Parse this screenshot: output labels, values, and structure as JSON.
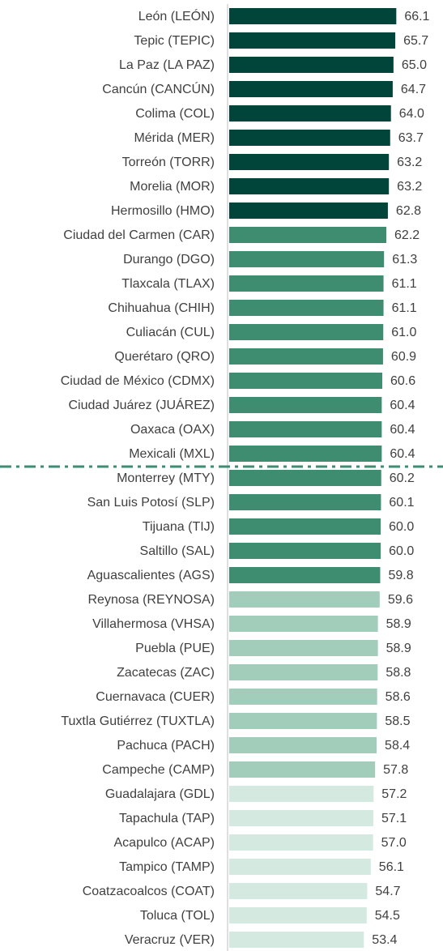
{
  "chart_data": {
    "type": "hbar",
    "categories": [
      "León (LEÓN)",
      "Tepic (TEPIC)",
      "La Paz (LA PAZ)",
      "Cancún (CANCÚN)",
      "Colima (COL)",
      "Mérida (MER)",
      "Torreón (TORR)",
      "Morelia (MOR)",
      "Hermosillo (HMO)",
      "Ciudad del Carmen (CAR)",
      "Durango (DGO)",
      "Tlaxcala (TLAX)",
      "Chihuahua (CHIH)",
      "Culiacán (CUL)",
      "Querétaro (QRO)",
      "Ciudad de México (CDMX)",
      "Ciudad Juárez (JUÁREZ)",
      "Oaxaca (OAX)",
      "Mexicali (MXL)",
      "Monterrey (MTY)",
      "San Luis Potosí (SLP)",
      "Tijuana (TIJ)",
      "Saltillo (SAL)",
      "Aguascalientes (AGS)",
      "Reynosa (REYNOSA)",
      "Villahermosa (VHSA)",
      "Puebla (PUE)",
      "Zacatecas (ZAC)",
      "Cuernavaca (CUER)",
      "Tuxtla Gutiérrez (TUXTLA)",
      "Pachuca (PACH)",
      "Campeche (CAMP)",
      "Guadalajara (GDL)",
      "Tapachula (TAP)",
      "Acapulco (ACAP)",
      "Tampico (TAMP)",
      "Coatzacoalcos (COAT)",
      "Toluca (TOL)",
      "Veracruz (VER)"
    ],
    "values": [
      66.1,
      65.7,
      65.0,
      64.7,
      64.0,
      63.7,
      63.2,
      63.2,
      62.8,
      62.2,
      61.3,
      61.1,
      61.1,
      61.0,
      60.9,
      60.6,
      60.4,
      60.4,
      60.4,
      60.2,
      60.1,
      60.0,
      60.0,
      59.8,
      59.6,
      58.9,
      58.9,
      58.8,
      58.6,
      58.5,
      58.4,
      57.8,
      57.2,
      57.1,
      57.0,
      56.1,
      54.7,
      54.5,
      53.4
    ],
    "value_labels": [
      "66.1",
      "65.7",
      "65.0",
      "64.7",
      "64.0",
      "63.7",
      "63.2",
      "63.2",
      "62.8",
      "62.2",
      "61.3",
      "61.1",
      "61.1",
      "61.0",
      "60.9",
      "60.6",
      "60.4",
      "60.4",
      "60.4",
      "60.2",
      "60.1",
      "60.0",
      "60.0",
      "59.8",
      "59.6",
      "58.9",
      "58.9",
      "58.8",
      "58.6",
      "58.5",
      "58.4",
      "57.8",
      "57.2",
      "57.1",
      "57.0",
      "56.1",
      "54.7",
      "54.5",
      "53.4"
    ],
    "colors": [
      "#00443a",
      "#00443a",
      "#00443a",
      "#00443a",
      "#00443a",
      "#00443a",
      "#00443a",
      "#00443a",
      "#00443a",
      "#3f8d70",
      "#3f8d70",
      "#3f8d70",
      "#3f8d70",
      "#3f8d70",
      "#3f8d70",
      "#3f8d70",
      "#3f8d70",
      "#3f8d70",
      "#3f8d70",
      "#3f8d70",
      "#3f8d70",
      "#3f8d70",
      "#3f8d70",
      "#3f8d70",
      "#a2cdbb",
      "#a2cdbb",
      "#a2cdbb",
      "#a2cdbb",
      "#a2cdbb",
      "#a2cdbb",
      "#a2cdbb",
      "#a2cdbb",
      "#d4e9e0",
      "#d4e9e0",
      "#d4e9e0",
      "#d4e9e0",
      "#d4e9e0",
      "#d4e9e0",
      "#d4e9e0"
    ],
    "xlim": [
      0,
      84.4
    ]
  }
}
